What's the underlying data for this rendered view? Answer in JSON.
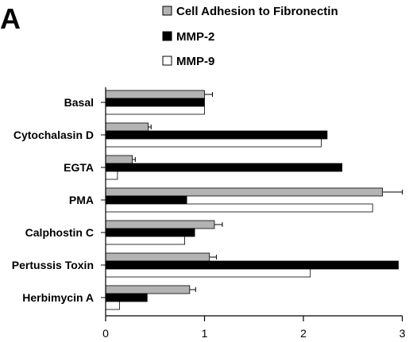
{
  "panel_label": "A",
  "colors": {
    "adhesion": "#b3b3b3",
    "mmp2": "#000000",
    "mmp9": "#ffffff",
    "stroke": "#000000"
  },
  "chart_data": {
    "type": "bar",
    "orientation": "horizontal",
    "categories": [
      "Basal",
      "Cytochalasin D",
      "EGTA",
      "PMA",
      "Calphostin C",
      "Pertussis Toxin",
      "Herbimycin A"
    ],
    "series": [
      {
        "name": "Cell Adhesion to Fibronectin",
        "values": [
          1.0,
          0.43,
          0.27,
          2.8,
          1.1,
          1.05,
          0.85
        ],
        "errors": [
          0.08,
          0.03,
          0.03,
          0.2,
          0.08,
          0.07,
          0.06
        ]
      },
      {
        "name": "MMP-2",
        "values": [
          1.0,
          2.24,
          2.39,
          0.82,
          0.9,
          2.96,
          0.42
        ]
      },
      {
        "name": "MMP-9",
        "values": [
          1.0,
          2.18,
          0.12,
          2.7,
          0.8,
          2.07,
          0.14
        ]
      }
    ],
    "xlim": [
      0,
      3
    ],
    "xticks": [
      "0",
      "1",
      "2",
      "3"
    ],
    "legend_position": "top",
    "grid": false
  }
}
